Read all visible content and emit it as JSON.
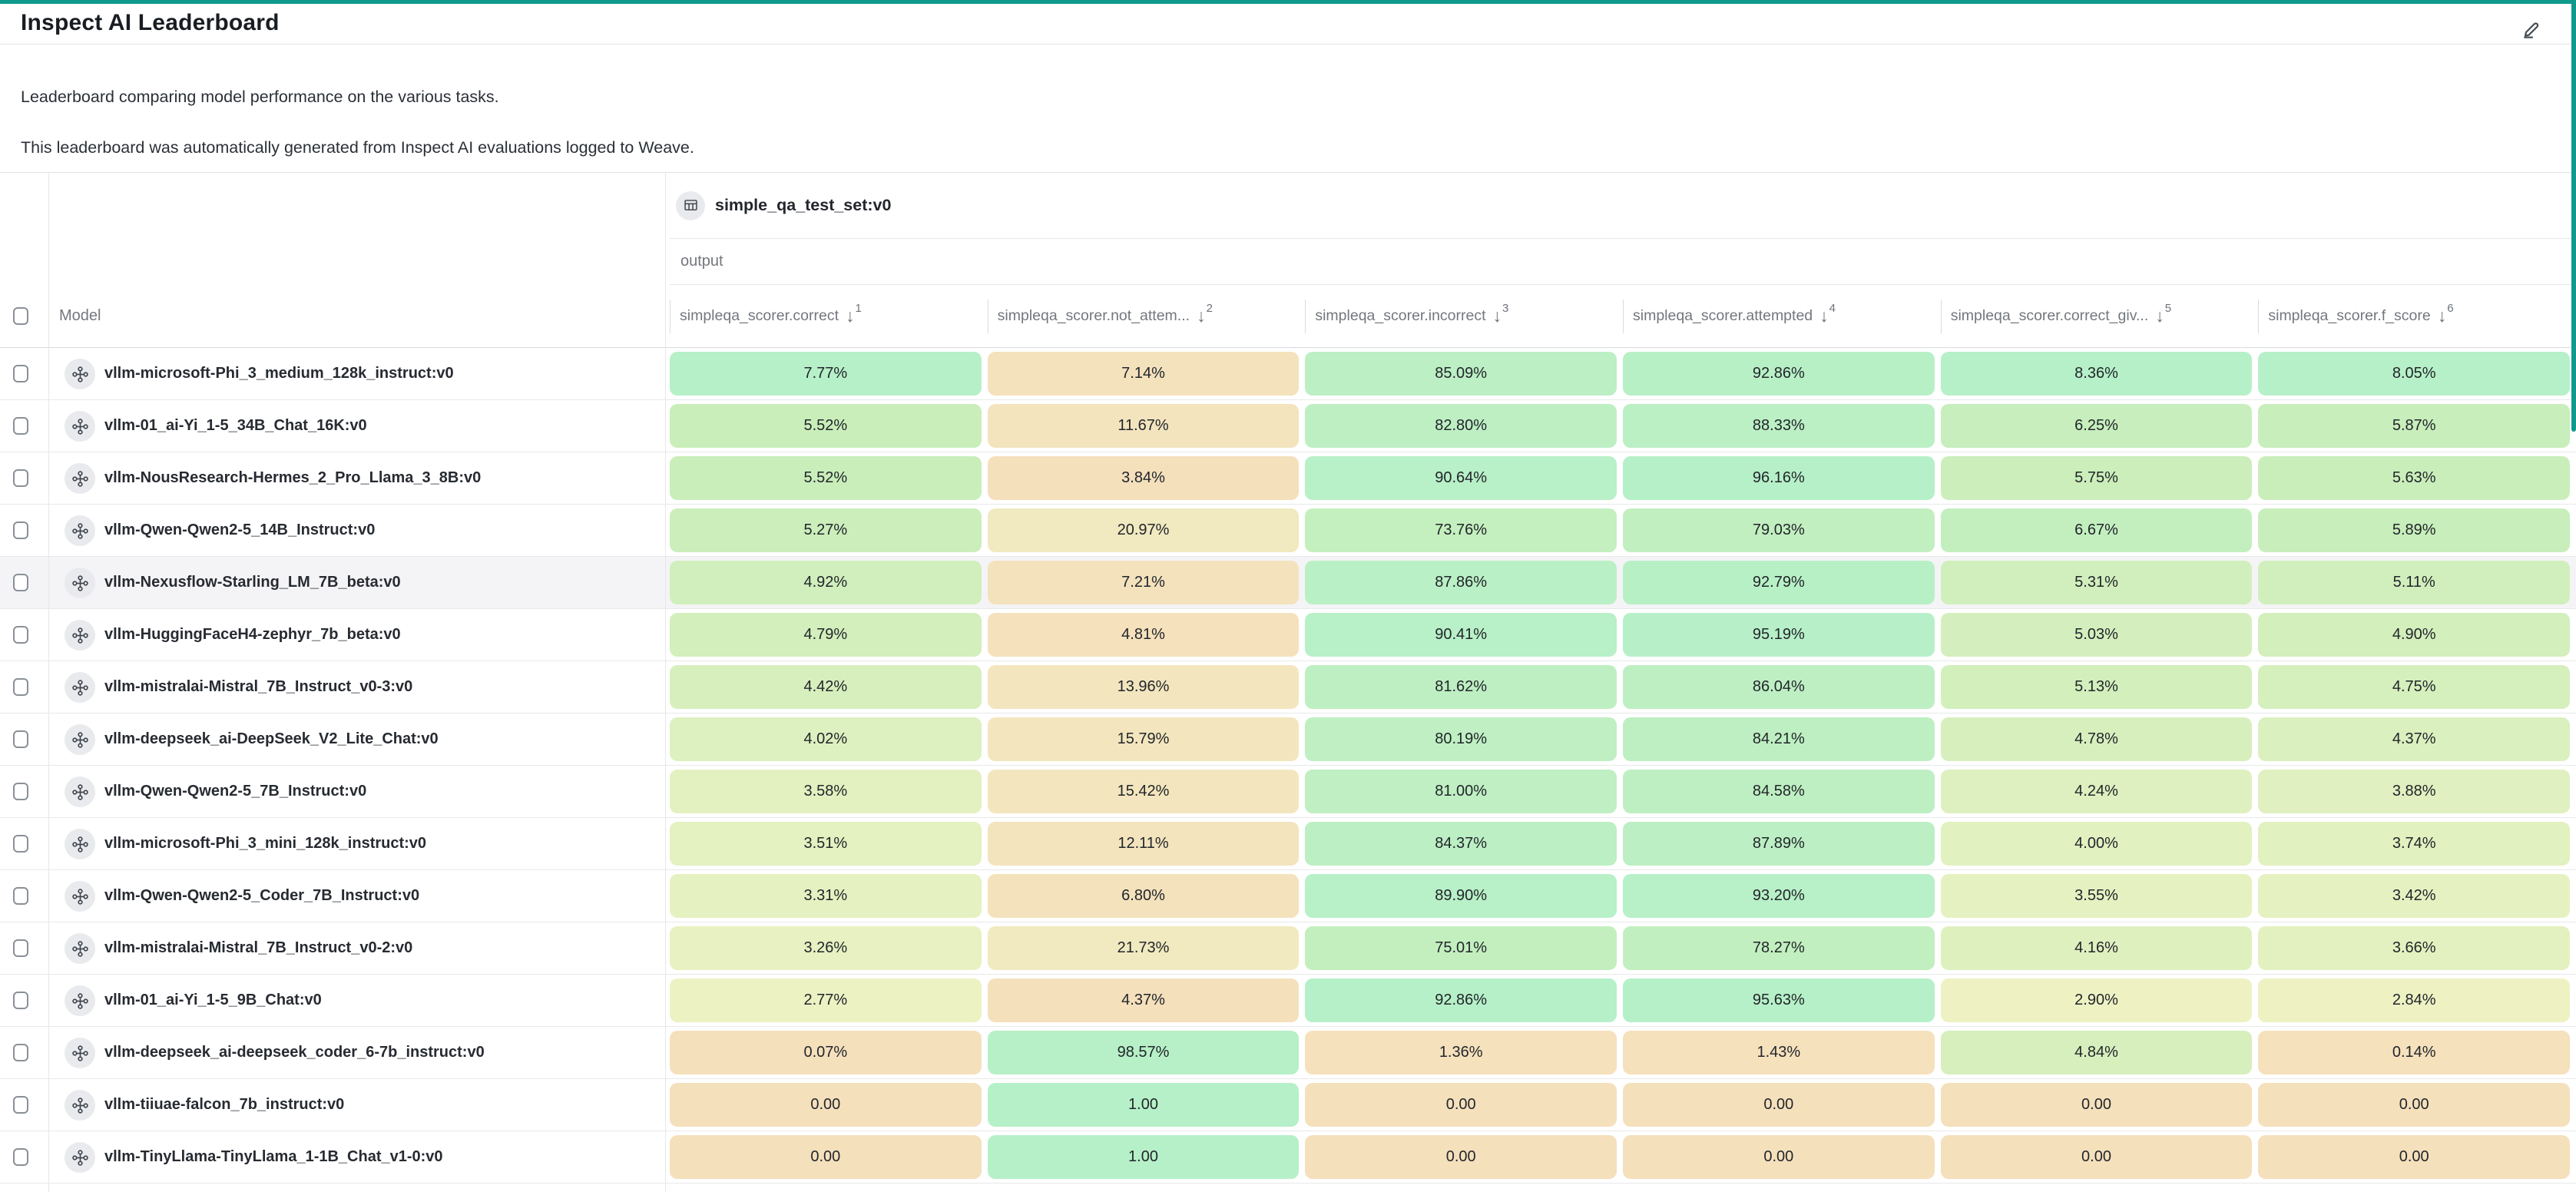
{
  "page": {
    "title": "Inspect AI Leaderboard",
    "description_line1": "Leaderboard comparing model performance on the various tasks.",
    "description_line2": "This leaderboard was automatically generated from Inspect AI evaluations logged to Weave."
  },
  "theme": {
    "accent_teal": "#0f9a8d",
    "hover_row_bg": "#f4f4f6",
    "heatmap_stops": [
      {
        "t": 0.0,
        "color": "#f5e0bc"
      },
      {
        "t": 0.35,
        "color": "#eef2c3"
      },
      {
        "t": 0.7,
        "color": "#caeeba"
      },
      {
        "t": 1.0,
        "color": "#b6f0c8"
      }
    ],
    "sort_icon": "↓"
  },
  "table": {
    "dataset_group": {
      "label": "simple_qa_test_set:v0"
    },
    "output_group_label": "output",
    "model_column_label": "Model",
    "columns": [
      {
        "label": "simpleqa_scorer.correct",
        "sort_order": "1"
      },
      {
        "label": "simpleqa_scorer.not_attem...",
        "sort_order": "2"
      },
      {
        "label": "simpleqa_scorer.incorrect",
        "sort_order": "3"
      },
      {
        "label": "simpleqa_scorer.attempted",
        "sort_order": "4"
      },
      {
        "label": "simpleqa_scorer.correct_giv...",
        "sort_order": "5"
      },
      {
        "label": "simpleqa_scorer.f_score",
        "sort_order": "6"
      }
    ],
    "hover_row": 4,
    "rows": [
      {
        "model": "vllm-microsoft-Phi_3_medium_128k_instruct:v0",
        "cells": [
          {
            "d": "7.77%",
            "v": 0.0777
          },
          {
            "d": "7.14%",
            "v": 0.0714
          },
          {
            "d": "85.09%",
            "v": 0.8509
          },
          {
            "d": "92.86%",
            "v": 0.9286
          },
          {
            "d": "8.36%",
            "v": 0.0836
          },
          {
            "d": "8.05%",
            "v": 0.0805
          }
        ]
      },
      {
        "model": "vllm-01_ai-Yi_1-5_34B_Chat_16K:v0",
        "cells": [
          {
            "d": "5.52%",
            "v": 0.0552
          },
          {
            "d": "11.67%",
            "v": 0.1167
          },
          {
            "d": "82.80%",
            "v": 0.828
          },
          {
            "d": "88.33%",
            "v": 0.8833
          },
          {
            "d": "6.25%",
            "v": 0.0625
          },
          {
            "d": "5.87%",
            "v": 0.0587
          }
        ]
      },
      {
        "model": "vllm-NousResearch-Hermes_2_Pro_Llama_3_8B:v0",
        "cells": [
          {
            "d": "5.52%",
            "v": 0.0552
          },
          {
            "d": "3.84%",
            "v": 0.0384
          },
          {
            "d": "90.64%",
            "v": 0.9064
          },
          {
            "d": "96.16%",
            "v": 0.9616
          },
          {
            "d": "5.75%",
            "v": 0.0575
          },
          {
            "d": "5.63%",
            "v": 0.0563
          }
        ]
      },
      {
        "model": "vllm-Qwen-Qwen2-5_14B_Instruct:v0",
        "cells": [
          {
            "d": "5.27%",
            "v": 0.0527
          },
          {
            "d": "20.97%",
            "v": 0.2097
          },
          {
            "d": "73.76%",
            "v": 0.7376
          },
          {
            "d": "79.03%",
            "v": 0.7903
          },
          {
            "d": "6.67%",
            "v": 0.0667
          },
          {
            "d": "5.89%",
            "v": 0.0589
          }
        ]
      },
      {
        "model": "vllm-Nexusflow-Starling_LM_7B_beta:v0",
        "cells": [
          {
            "d": "4.92%",
            "v": 0.0492
          },
          {
            "d": "7.21%",
            "v": 0.0721
          },
          {
            "d": "87.86%",
            "v": 0.8786
          },
          {
            "d": "92.79%",
            "v": 0.9279
          },
          {
            "d": "5.31%",
            "v": 0.0531
          },
          {
            "d": "5.11%",
            "v": 0.0511
          }
        ]
      },
      {
        "model": "vllm-HuggingFaceH4-zephyr_7b_beta:v0",
        "cells": [
          {
            "d": "4.79%",
            "v": 0.0479
          },
          {
            "d": "4.81%",
            "v": 0.0481
          },
          {
            "d": "90.41%",
            "v": 0.9041
          },
          {
            "d": "95.19%",
            "v": 0.9519
          },
          {
            "d": "5.03%",
            "v": 0.0503
          },
          {
            "d": "4.90%",
            "v": 0.049
          }
        ]
      },
      {
        "model": "vllm-mistralai-Mistral_7B_Instruct_v0-3:v0",
        "cells": [
          {
            "d": "4.42%",
            "v": 0.0442
          },
          {
            "d": "13.96%",
            "v": 0.1396
          },
          {
            "d": "81.62%",
            "v": 0.8162
          },
          {
            "d": "86.04%",
            "v": 0.8604
          },
          {
            "d": "5.13%",
            "v": 0.0513
          },
          {
            "d": "4.75%",
            "v": 0.0475
          }
        ]
      },
      {
        "model": "vllm-deepseek_ai-DeepSeek_V2_Lite_Chat:v0",
        "cells": [
          {
            "d": "4.02%",
            "v": 0.0402
          },
          {
            "d": "15.79%",
            "v": 0.1579
          },
          {
            "d": "80.19%",
            "v": 0.8019
          },
          {
            "d": "84.21%",
            "v": 0.8421
          },
          {
            "d": "4.78%",
            "v": 0.0478
          },
          {
            "d": "4.37%",
            "v": 0.0437
          }
        ]
      },
      {
        "model": "vllm-Qwen-Qwen2-5_7B_Instruct:v0",
        "cells": [
          {
            "d": "3.58%",
            "v": 0.0358
          },
          {
            "d": "15.42%",
            "v": 0.1542
          },
          {
            "d": "81.00%",
            "v": 0.81
          },
          {
            "d": "84.58%",
            "v": 0.8458
          },
          {
            "d": "4.24%",
            "v": 0.0424
          },
          {
            "d": "3.88%",
            "v": 0.0388
          }
        ]
      },
      {
        "model": "vllm-microsoft-Phi_3_mini_128k_instruct:v0",
        "cells": [
          {
            "d": "3.51%",
            "v": 0.0351
          },
          {
            "d": "12.11%",
            "v": 0.1211
          },
          {
            "d": "84.37%",
            "v": 0.8437
          },
          {
            "d": "87.89%",
            "v": 0.8789
          },
          {
            "d": "4.00%",
            "v": 0.04
          },
          {
            "d": "3.74%",
            "v": 0.0374
          }
        ]
      },
      {
        "model": "vllm-Qwen-Qwen2-5_Coder_7B_Instruct:v0",
        "cells": [
          {
            "d": "3.31%",
            "v": 0.0331
          },
          {
            "d": "6.80%",
            "v": 0.068
          },
          {
            "d": "89.90%",
            "v": 0.899
          },
          {
            "d": "93.20%",
            "v": 0.932
          },
          {
            "d": "3.55%",
            "v": 0.0355
          },
          {
            "d": "3.42%",
            "v": 0.0342
          }
        ]
      },
      {
        "model": "vllm-mistralai-Mistral_7B_Instruct_v0-2:v0",
        "cells": [
          {
            "d": "3.26%",
            "v": 0.0326
          },
          {
            "d": "21.73%",
            "v": 0.2173
          },
          {
            "d": "75.01%",
            "v": 0.7501
          },
          {
            "d": "78.27%",
            "v": 0.7827
          },
          {
            "d": "4.16%",
            "v": 0.0416
          },
          {
            "d": "3.66%",
            "v": 0.0366
          }
        ]
      },
      {
        "model": "vllm-01_ai-Yi_1-5_9B_Chat:v0",
        "cells": [
          {
            "d": "2.77%",
            "v": 0.0277
          },
          {
            "d": "4.37%",
            "v": 0.0437
          },
          {
            "d": "92.86%",
            "v": 0.9286
          },
          {
            "d": "95.63%",
            "v": 0.9563
          },
          {
            "d": "2.90%",
            "v": 0.029
          },
          {
            "d": "2.84%",
            "v": 0.0284
          }
        ]
      },
      {
        "model": "vllm-deepseek_ai-deepseek_coder_6-7b_instruct:v0",
        "cells": [
          {
            "d": "0.07%",
            "v": 0.0007
          },
          {
            "d": "98.57%",
            "v": 0.9857
          },
          {
            "d": "1.36%",
            "v": 0.0136
          },
          {
            "d": "1.43%",
            "v": 0.0143
          },
          {
            "d": "4.84%",
            "v": 0.0484
          },
          {
            "d": "0.14%",
            "v": 0.0014
          }
        ]
      },
      {
        "model": "vllm-tiiuae-falcon_7b_instruct:v0",
        "cells": [
          {
            "d": "0.00",
            "v": 0
          },
          {
            "d": "1.00",
            "v": 1
          },
          {
            "d": "0.00",
            "v": 0
          },
          {
            "d": "0.00",
            "v": 0
          },
          {
            "d": "0.00",
            "v": 0
          },
          {
            "d": "0.00",
            "v": 0
          }
        ]
      },
      {
        "model": "vllm-TinyLlama-TinyLlama_1-1B_Chat_v1-0:v0",
        "cells": [
          {
            "d": "0.00",
            "v": 0
          },
          {
            "d": "1.00",
            "v": 1
          },
          {
            "d": "0.00",
            "v": 0
          },
          {
            "d": "0.00",
            "v": 0
          },
          {
            "d": "0.00",
            "v": 0
          },
          {
            "d": "0.00",
            "v": 0
          }
        ]
      }
    ]
  }
}
